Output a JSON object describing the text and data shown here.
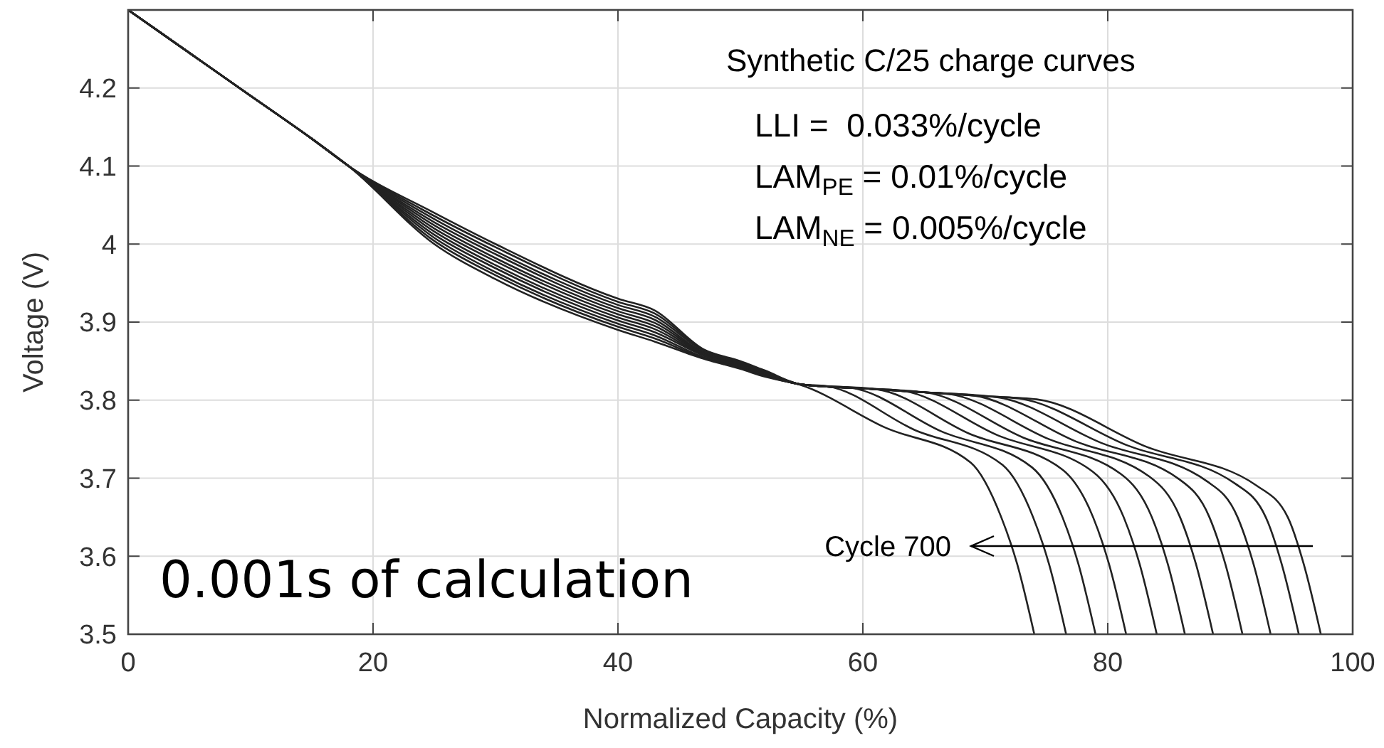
{
  "chart_data": {
    "type": "line",
    "xlabel": "Normalized Capacity (%)",
    "ylabel": "Voltage (V)",
    "xlim": [
      0,
      100
    ],
    "xticks": [
      0,
      20,
      40,
      60,
      80,
      100
    ],
    "ylim": [
      3.5,
      4.3
    ],
    "yticks": [
      3.5,
      3.6,
      3.7,
      3.8,
      3.9,
      4,
      4.1,
      4.2
    ],
    "grid": true,
    "marker": "none",
    "line_style": "solid",
    "annotations": [
      "Synthetic C/25 charge curves",
      "LLI =  0.033%/cycle",
      "LAM$_{PE}$ = 0.01%/cycle",
      "LAM$_{NE}$ = 0.005%/cycle",
      "0.001s of calculation",
      "Cycle 700"
    ],
    "series": [
      {
        "color": "#222222",
        "x": [
          0,
          5,
          10,
          15,
          18,
          25,
          30,
          40,
          43,
          47,
          50,
          52,
          55,
          60,
          65,
          70,
          74.2,
          83.2,
          92.2,
          94.7,
          96,
          97.4
        ],
        "values": [
          4.3,
          4.245,
          4.19,
          4.135,
          4.1,
          4.04,
          4,
          3.93,
          3.915,
          3.865,
          3.85,
          3.838,
          3.82,
          3.815,
          3.81,
          3.805,
          3.801,
          3.74,
          3.69,
          3.65,
          3.59,
          3.5
        ]
      },
      {
        "color": "#222222",
        "x": [
          0,
          5,
          10,
          15,
          18,
          25,
          30,
          40,
          43,
          47,
          50,
          52,
          55,
          60,
          65,
          70,
          72.8,
          81.6,
          90.4,
          92.9,
          94.2,
          95.6
        ],
        "values": [
          4.3,
          4.245,
          4.19,
          4.135,
          4.1,
          4.036,
          3.996,
          3.926,
          3.911,
          3.864,
          3.849,
          3.837,
          3.82,
          3.815,
          3.81,
          3.805,
          3.802,
          3.742,
          3.693,
          3.65,
          3.59,
          3.5
        ]
      },
      {
        "color": "#222222",
        "x": [
          0,
          5,
          10,
          15,
          18,
          25,
          30,
          40,
          43,
          47,
          50,
          52,
          55,
          60,
          65,
          70.9,
          79.5,
          88.1,
          90.6,
          91.9,
          93.3
        ],
        "values": [
          4.3,
          4.245,
          4.19,
          4.135,
          4.1,
          4.032,
          3.991,
          3.922,
          3.907,
          3.863,
          3.848,
          3.836,
          3.82,
          3.815,
          3.81,
          3.804,
          3.745,
          3.696,
          3.65,
          3.59,
          3.5
        ]
      },
      {
        "color": "#222222",
        "x": [
          0,
          5,
          10,
          15,
          18,
          25,
          30,
          40,
          43,
          47,
          50,
          52,
          55,
          60,
          65,
          69,
          77.4,
          85.8,
          88.3,
          89.6,
          91
        ],
        "values": [
          4.3,
          4.245,
          4.19,
          4.135,
          4.1,
          4.028,
          3.987,
          3.918,
          3.903,
          3.861,
          3.847,
          3.836,
          3.82,
          3.815,
          3.81,
          3.806,
          3.747,
          3.699,
          3.65,
          3.59,
          3.5
        ]
      },
      {
        "color": "#222222",
        "x": [
          0,
          5,
          10,
          15,
          18,
          25,
          30,
          40,
          43,
          47,
          50,
          52,
          55,
          60,
          65,
          67,
          75.2,
          83.4,
          85.9,
          87.2,
          88.6
        ],
        "values": [
          4.3,
          4.245,
          4.19,
          4.135,
          4.1,
          4.024,
          3.982,
          3.914,
          3.899,
          3.86,
          3.846,
          3.835,
          3.82,
          3.815,
          3.81,
          3.808,
          3.75,
          3.702,
          3.65,
          3.59,
          3.5
        ]
      },
      {
        "color": "#222222",
        "x": [
          0,
          5,
          10,
          15,
          18,
          25,
          30,
          40,
          43,
          47,
          50,
          52,
          55,
          60,
          65.1,
          73.1,
          81.1,
          83.6,
          84.9,
          86.3
        ],
        "values": [
          4.3,
          4.245,
          4.19,
          4.135,
          4.1,
          4.02,
          3.978,
          3.91,
          3.895,
          3.859,
          3.845,
          3.834,
          3.82,
          3.815,
          3.81,
          3.752,
          3.705,
          3.65,
          3.59,
          3.5
        ]
      },
      {
        "color": "#222222",
        "x": [
          0,
          5,
          10,
          15,
          18,
          25,
          30,
          40,
          43,
          47,
          50,
          52,
          55,
          60,
          63.2,
          71,
          78.8,
          81.3,
          82.6,
          84
        ],
        "values": [
          4.3,
          4.245,
          4.19,
          4.135,
          4.1,
          4.016,
          3.973,
          3.906,
          3.891,
          3.858,
          3.844,
          3.833,
          3.82,
          3.815,
          3.812,
          3.755,
          3.708,
          3.65,
          3.59,
          3.5
        ]
      },
      {
        "color": "#222222",
        "x": [
          0,
          5,
          10,
          15,
          18,
          25,
          30,
          40,
          43,
          47,
          50,
          52,
          55,
          61.1,
          68.7,
          76.3,
          78.8,
          80.1,
          81.5
        ],
        "values": [
          4.3,
          4.245,
          4.19,
          4.135,
          4.1,
          4.012,
          3.969,
          3.902,
          3.887,
          3.857,
          3.843,
          3.832,
          3.82,
          3.814,
          3.757,
          3.711,
          3.65,
          3.59,
          3.5
        ]
      },
      {
        "color": "#222222",
        "x": [
          0,
          5,
          10,
          15,
          18,
          25,
          30,
          40,
          43,
          47,
          50,
          52,
          55,
          59,
          66.4,
          73.8,
          76.3,
          77.6,
          79
        ],
        "values": [
          4.3,
          4.245,
          4.19,
          4.135,
          4.1,
          4.008,
          3.964,
          3.898,
          3.883,
          3.855,
          3.842,
          3.832,
          3.82,
          3.816,
          3.76,
          3.714,
          3.65,
          3.59,
          3.5
        ]
      },
      {
        "color": "#222222",
        "x": [
          0,
          5,
          10,
          15,
          18,
          25,
          30,
          40,
          43,
          47,
          50,
          52,
          55,
          57,
          64.2,
          71.4,
          73.9,
          75.2,
          76.6
        ],
        "values": [
          4.3,
          4.245,
          4.19,
          4.135,
          4.1,
          4.004,
          3.96,
          3.894,
          3.879,
          3.854,
          3.841,
          3.831,
          3.82,
          3.818,
          3.762,
          3.717,
          3.65,
          3.59,
          3.5
        ]
      },
      {
        "color": "#222222",
        "x": [
          0,
          5,
          10,
          15,
          18,
          25,
          30,
          40,
          43,
          47,
          50,
          52,
          54.8,
          61.8,
          68.8,
          71.3,
          72.6,
          74
        ],
        "values": [
          4.3,
          4.245,
          4.19,
          4.135,
          4.1,
          4,
          3.955,
          3.89,
          3.875,
          3.853,
          3.84,
          3.83,
          3.82,
          3.765,
          3.72,
          3.65,
          3.59,
          3.5
        ]
      }
    ]
  }
}
